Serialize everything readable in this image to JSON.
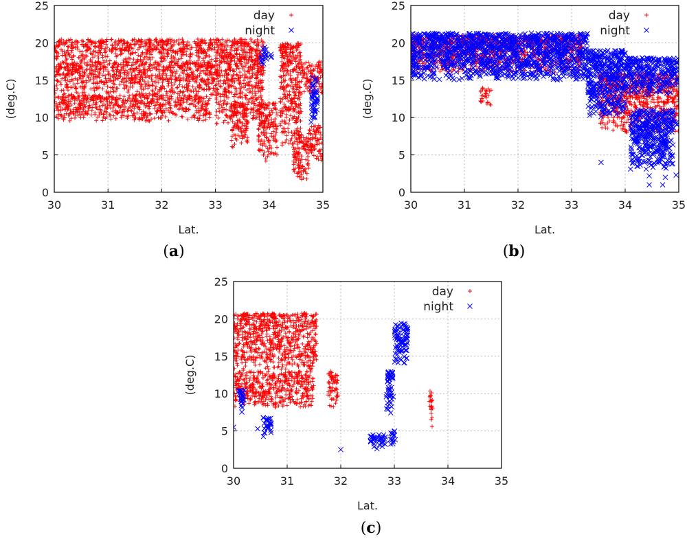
{
  "chart_data": [
    {
      "id": "a",
      "type": "scatter",
      "caption_open": "(",
      "caption_letter": "a",
      "caption_close": ")",
      "xlabel": "Lat.",
      "ylabel": "(deg.C)",
      "xlim": [
        30,
        35
      ],
      "ylim": [
        0,
        25
      ],
      "xticks": [
        30,
        31,
        32,
        33,
        34,
        35
      ],
      "yticks": [
        0,
        5,
        10,
        15,
        20,
        25
      ],
      "legend": [
        "day",
        "night"
      ],
      "series": [
        {
          "name": "day",
          "marker": "+",
          "color": "#ff0000",
          "approx_points_desc": "dense band",
          "bands": [
            [
              30.0,
              33.0,
              17.5,
              20.5
            ],
            [
              30.0,
              33.0,
              13.0,
              17.5
            ],
            [
              30.0,
              32.9,
              9.5,
              13.0
            ],
            [
              33.0,
              33.9,
              9.0,
              20.5
            ],
            [
              33.3,
              33.6,
              6.0,
              12.0
            ],
            [
              33.8,
              34.15,
              4.0,
              12.0
            ],
            [
              34.2,
              34.6,
              6.0,
              20.0
            ],
            [
              34.45,
              34.75,
              1.5,
              8.0
            ],
            [
              34.75,
              35.0,
              4.0,
              9.0
            ],
            [
              34.6,
              35.0,
              13.0,
              17.5
            ]
          ]
        },
        {
          "name": "night",
          "marker": "x",
          "color": "#0000ff",
          "bands": [
            [
              33.83,
              33.95,
              17.0,
              19.5
            ],
            [
              34.03,
              34.08,
              17.5,
              18.5
            ],
            [
              34.78,
              34.9,
              9.0,
              15.5
            ]
          ]
        }
      ]
    },
    {
      "id": "b",
      "type": "scatter",
      "caption_open": "(",
      "caption_letter": "b",
      "caption_close": ")",
      "xlabel": "Lat.",
      "ylabel": "(deg.C)",
      "xlim": [
        30,
        35
      ],
      "ylim": [
        0,
        25
      ],
      "xticks": [
        30,
        31,
        32,
        33,
        34,
        35
      ],
      "yticks": [
        0,
        5,
        10,
        15,
        20,
        25
      ],
      "legend": [
        "day",
        "night"
      ],
      "series": [
        {
          "name": "day",
          "marker": "+",
          "color": "#ff0000",
          "bands": [
            [
              30.0,
              33.2,
              16.0,
              21.0
            ],
            [
              31.3,
              31.5,
              11.5,
              14.0
            ],
            [
              33.5,
              35.0,
              8.0,
              16.0
            ]
          ]
        },
        {
          "name": "night",
          "marker": "x",
          "color": "#0000ff",
          "bands": [
            [
              30.0,
              33.3,
              15.0,
              21.3
            ],
            [
              33.3,
              34.0,
              10.0,
              19.0
            ],
            [
              34.0,
              35.0,
              13.0,
              18.0
            ],
            [
              34.1,
              34.9,
              3.0,
              11.0
            ],
            [
              34.9,
              35.0,
              8.5,
              9.5
            ]
          ],
          "points": [
            [
              33.55,
              4.0
            ],
            [
              34.1,
              3.1
            ],
            [
              34.45,
              2.2
            ],
            [
              34.45,
              1.0
            ],
            [
              34.7,
              1.0
            ],
            [
              34.75,
              2.0
            ],
            [
              34.95,
              2.3
            ]
          ]
        }
      ]
    },
    {
      "id": "c",
      "type": "scatter",
      "caption_open": "(",
      "caption_letter": "c",
      "caption_close": ")",
      "xlabel": "Lat.",
      "ylabel": "(deg.C)",
      "xlim": [
        30,
        35
      ],
      "ylim": [
        0,
        25
      ],
      "xticks": [
        30,
        31,
        32,
        33,
        34,
        35
      ],
      "yticks": [
        0,
        5,
        10,
        15,
        20,
        25
      ],
      "legend": [
        "day",
        "night"
      ],
      "series": [
        {
          "name": "day",
          "marker": "+",
          "color": "#ff0000",
          "bands": [
            [
              30.0,
              31.55,
              13.0,
              20.8
            ],
            [
              30.0,
              31.5,
              8.0,
              13.0
            ],
            [
              31.75,
              31.95,
              8.0,
              13.0
            ],
            [
              33.65,
              33.72,
              5.0,
              10.5
            ]
          ]
        },
        {
          "name": "night",
          "marker": "x",
          "color": "#0000ff",
          "bands": [
            [
              30.1,
              30.2,
              7.0,
              10.5
            ],
            [
              30.55,
              30.7,
              4.0,
              7.0
            ],
            [
              32.55,
              32.85,
              2.5,
              4.5
            ],
            [
              32.85,
              32.98,
              7.0,
              13.0
            ],
            [
              32.9,
              33.02,
              3.0,
              5.0
            ],
            [
              33.0,
              33.25,
              14.0,
              19.5
            ]
          ],
          "points": [
            [
              30.0,
              5.5
            ],
            [
              30.45,
              5.3
            ],
            [
              32.0,
              2.5
            ]
          ]
        }
      ]
    }
  ]
}
